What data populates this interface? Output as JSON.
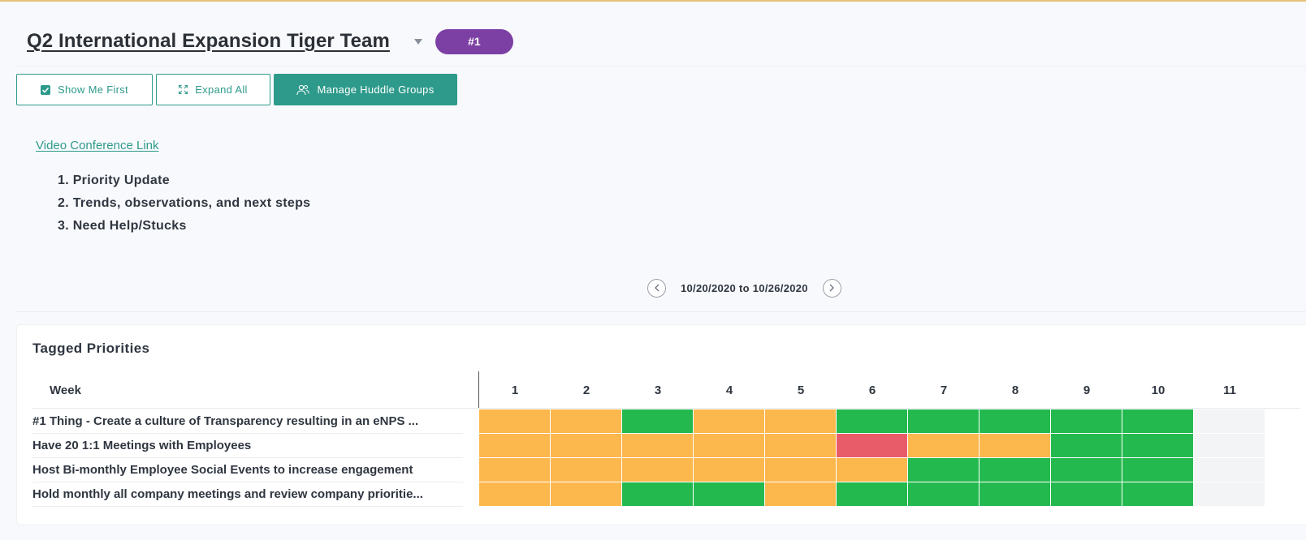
{
  "header": {
    "team_title": "Q2 International Expansion Tiger Team",
    "rank_badge": "#1"
  },
  "toolbar": {
    "show_me_first": "Show Me First",
    "expand_all": "Expand All",
    "manage_huddle_groups": "Manage Huddle Groups"
  },
  "meeting": {
    "video_link": "Video Conference Link",
    "agenda": [
      "Priority Update",
      "Trends, observations, and next steps",
      "Need Help/Stucks"
    ]
  },
  "date_nav": {
    "range": "10/20/2020 to 10/26/2020"
  },
  "priorities": {
    "title": "Tagged Priorities",
    "week_label": "Week",
    "weeks": [
      "1",
      "2",
      "3",
      "4",
      "5",
      "6",
      "7",
      "8",
      "9",
      "10",
      "11"
    ],
    "status_colors": {
      "yellow": "#fcb74d",
      "green": "#24b94f",
      "red": "#e85c6a",
      "empty": "#f2f4f5"
    },
    "rows": [
      {
        "label": "#1 Thing - Create a culture of Transparency resulting in an eNPS ...",
        "statuses": [
          "yellow",
          "yellow",
          "green",
          "yellow",
          "yellow",
          "green",
          "green",
          "green",
          "green",
          "green",
          "empty"
        ]
      },
      {
        "label": "Have 20 1:1 Meetings with Employees",
        "statuses": [
          "yellow",
          "yellow",
          "yellow",
          "yellow",
          "yellow",
          "red",
          "yellow",
          "yellow",
          "green",
          "green",
          "empty"
        ]
      },
      {
        "label": "Host Bi-monthly Employee Social Events to increase engagement",
        "statuses": [
          "yellow",
          "yellow",
          "yellow",
          "yellow",
          "yellow",
          "yellow",
          "green",
          "green",
          "green",
          "green",
          "empty"
        ]
      },
      {
        "label": "Hold monthly all company meetings and review company prioritie...",
        "statuses": [
          "yellow",
          "yellow",
          "green",
          "green",
          "yellow",
          "green",
          "green",
          "green",
          "green",
          "green",
          "empty"
        ]
      }
    ]
  }
}
